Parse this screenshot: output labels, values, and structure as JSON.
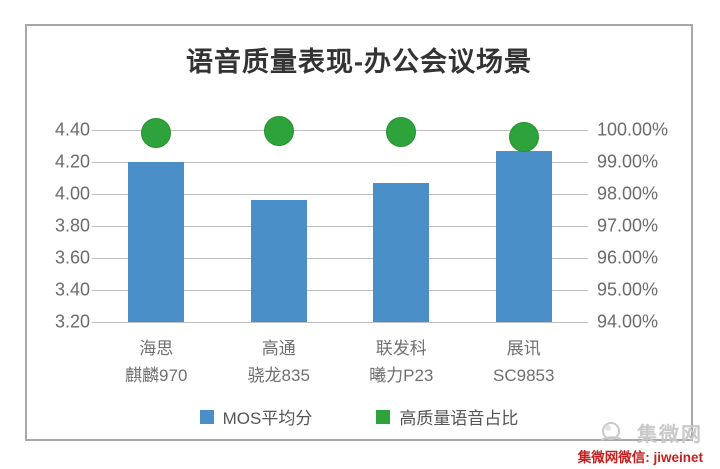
{
  "chart_data": {
    "type": "bar",
    "subtype": "combo-bar-point-dual-axis",
    "title": "语音质量表现-办公会议场景",
    "categories": [
      "海思\n麒麟970",
      "高通\n骁龙835",
      "联发科\n曦力P23",
      "展讯\nSC9853"
    ],
    "series": [
      {
        "name": "MOS平均分",
        "type": "bar",
        "axis": "left",
        "color": "#4a8fc8",
        "values": [
          4.2,
          3.96,
          4.07,
          4.27
        ]
      },
      {
        "name": "高质量语音占比",
        "type": "point",
        "axis": "right",
        "color": "#2fa33b",
        "values": [
          99.9,
          99.97,
          99.94,
          99.78
        ]
      }
    ],
    "left_axis": {
      "min": 3.2,
      "max": 4.4,
      "step": 0.2,
      "tick_labels": [
        "4.40",
        "4.20",
        "4.00",
        "3.80",
        "3.60",
        "3.40",
        "3.20"
      ]
    },
    "right_axis": {
      "min": 94,
      "max": 100,
      "step": 1,
      "tick_labels": [
        "100.00%",
        "99.00%",
        "98.00%",
        "97.00%",
        "96.00%",
        "95.00%",
        "94.00%"
      ]
    },
    "grid": true,
    "legend_position": "bottom",
    "theme": {
      "bar_color": "#4a8fc8",
      "point_color": "#2fa33b",
      "gridline_color": "#bfbfbf",
      "frame_color": "#a8a8a8",
      "tick_label_color": "#6b6b6b",
      "category_label_color": "#6f6f6f",
      "title_color": "#333333"
    }
  },
  "watermark": {
    "logo_text": "集微网",
    "caption": "集微网微信: jiweinet",
    "caption_color": "#c41f1f",
    "logo_color": "#c9c9c9"
  }
}
